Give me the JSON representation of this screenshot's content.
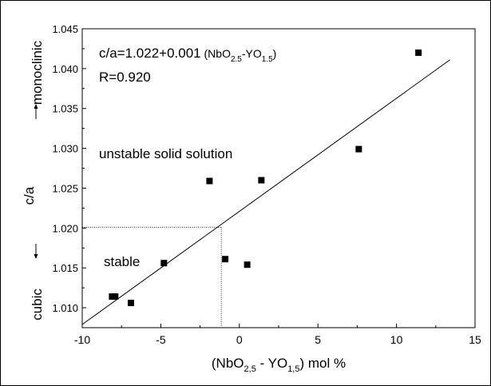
{
  "chart_data": {
    "type": "scatter",
    "xlabel": {
      "pre": "(NbO",
      "sub1": "2,5",
      "mid": " - YO",
      "sub2": "1,5",
      "post": ") mol %"
    },
    "ylabel": "c/a",
    "y_top_label": "monoclinic",
    "y_bottom_label": "cubic",
    "xlim": [
      -10,
      15
    ],
    "ylim": [
      1.0075,
      1.045
    ],
    "xticks": [
      -10,
      -5,
      0,
      5,
      10,
      15
    ],
    "yticks": [
      1.01,
      1.015,
      1.02,
      1.025,
      1.03,
      1.035,
      1.04,
      1.045
    ],
    "xtick_labels": [
      "-10",
      "-5",
      "0",
      "5",
      "10",
      "15"
    ],
    "ytick_labels": [
      "1.010",
      "1.015",
      "1.020",
      "1.025",
      "1.030",
      "1.035",
      "1.040",
      "1.045"
    ],
    "series": [
      {
        "points": [
          {
            "x": -8.1,
            "y": 1.0114
          },
          {
            "x": -7.9,
            "y": 1.0114
          },
          {
            "x": -6.9,
            "y": 1.0106
          },
          {
            "x": -4.8,
            "y": 1.0156
          },
          {
            "x": -1.9,
            "y": 1.0259
          },
          {
            "x": -0.9,
            "y": 1.0161
          },
          {
            "x": 0.5,
            "y": 1.0154
          },
          {
            "x": 1.4,
            "y": 1.026
          },
          {
            "x": 7.6,
            "y": 1.0299
          },
          {
            "x": 11.4,
            "y": 1.042
          }
        ]
      }
    ],
    "fit_line": {
      "x": [
        -10,
        13.4
      ],
      "y": [
        1.0079,
        1.0411
      ]
    },
    "guide": {
      "x": -1.15,
      "y": 1.0201
    },
    "equation": {
      "pre": "c/a=1.022+0.001",
      "paren_pre": " (NbO",
      "sub1": "2.5",
      "paren_mid": "-YO",
      "sub2": "1.5",
      "paren_post": ")"
    },
    "r_text": "R=0.920",
    "annotation_unstable": "unstable solid solution",
    "annotation_stable": "stable"
  }
}
